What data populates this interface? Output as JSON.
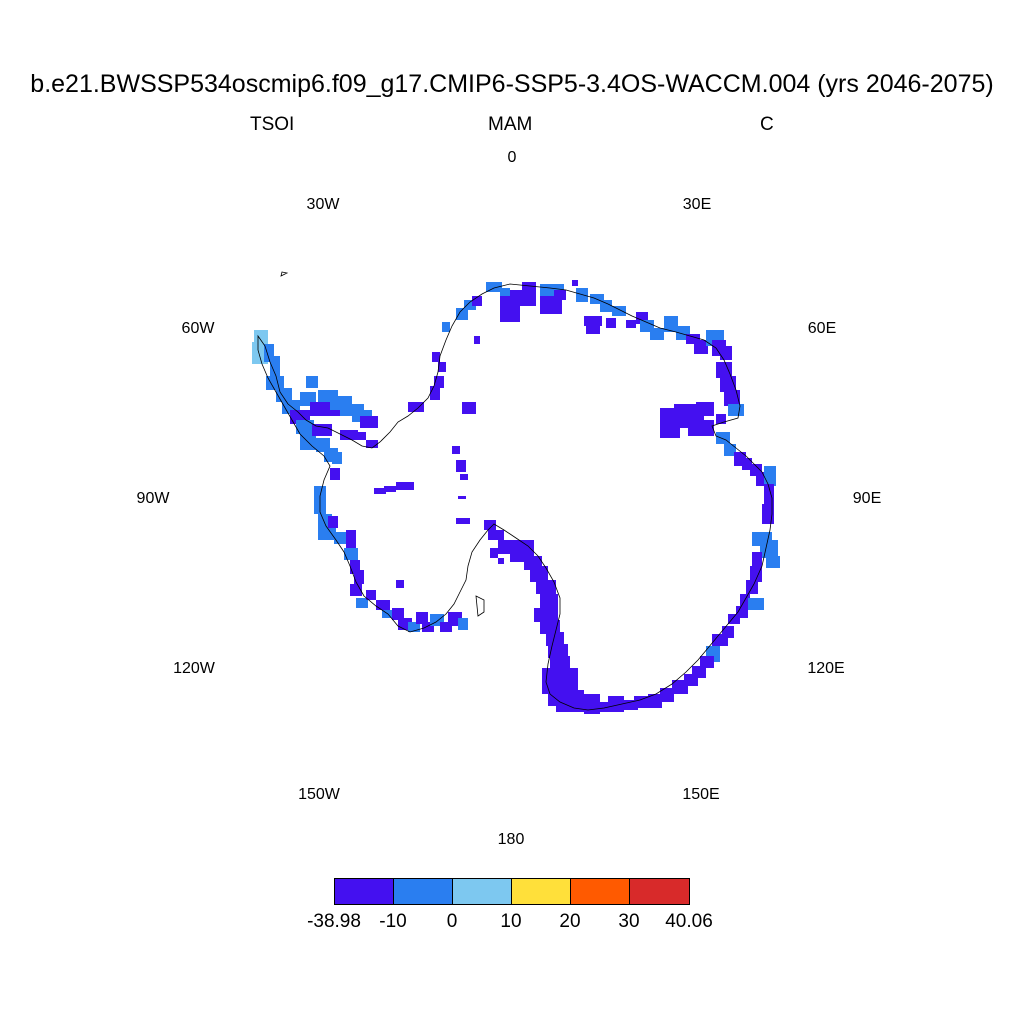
{
  "title": "b.e21.BWSSP534oscmip6.f09_g17.CMIP6-SSP5-3.4OS-WACCM.004 (yrs 2046-2075)",
  "subtitle": {
    "left": "TSOI",
    "center": "MAM",
    "right": "C"
  },
  "longitude_labels": [
    "0",
    "30E",
    "60E",
    "90E",
    "120E",
    "150E",
    "180",
    "150W",
    "120W",
    "90W",
    "60W",
    "30W"
  ],
  "colorbar": {
    "colors": [
      "#4410f0",
      "#2a7ef0",
      "#7dc8f0",
      "#ffe03a",
      "#ff5a00",
      "#d82a2a"
    ],
    "labels": [
      "-38.98",
      "-10",
      "0",
      "10",
      "20",
      "30",
      "40.06"
    ]
  },
  "map": {
    "projection": "south-polar-stereographic",
    "region": "Antarctica",
    "field_colors": {
      "cold": "#4410f0",
      "cool": "#2a7ef0",
      "mild": "#7dc8f0"
    }
  }
}
